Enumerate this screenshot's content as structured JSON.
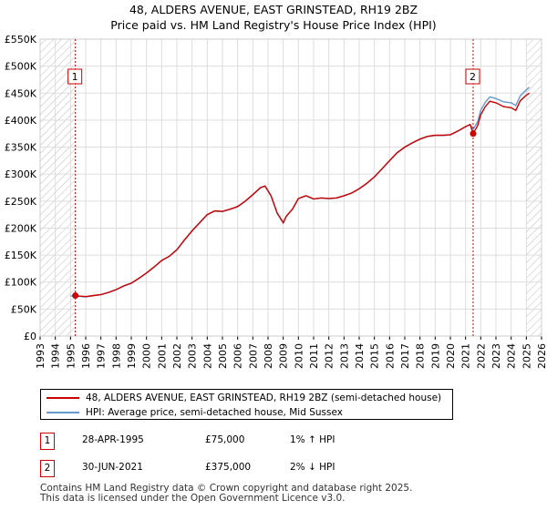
{
  "title_line1": "48, ALDERS AVENUE, EAST GRINSTEAD, RH19 2BZ",
  "title_line2": "Price paid vs. HM Land Registry's House Price Index (HPI)",
  "legend": {
    "property_label": "48, ALDERS AVENUE, EAST GRINSTEAD, RH19 2BZ (semi-detached house)",
    "hpi_label": "HPI: Average price, semi-detached house, Mid Sussex"
  },
  "sales": [
    {
      "num": "1",
      "date": "28-APR-1995",
      "price": "£75,000",
      "hpi_rel": "1% ↑ HPI"
    },
    {
      "num": "2",
      "date": "30-JUN-2021",
      "price": "£375,000",
      "hpi_rel": "2% ↓ HPI"
    }
  ],
  "footer_line1": "Contains HM Land Registry data © Crown copyright and database right 2025.",
  "footer_line2": "This data is licensed under the Open Government Licence v3.0.",
  "colors": {
    "property": "#cc0000",
    "hpi": "#6699cc",
    "grid": "#dddddd",
    "hatch": "#bbbbbb"
  },
  "chart_data": {
    "type": "line",
    "title": "Price paid vs. HM Land Registry's House Price Index (HPI)",
    "xlabel": "",
    "ylabel": "",
    "xlim": [
      1993,
      2026
    ],
    "ylim": [
      0,
      550000
    ],
    "x_ticks": [
      "1993",
      "1994",
      "1995",
      "1996",
      "1997",
      "1998",
      "1999",
      "2000",
      "2001",
      "2002",
      "2003",
      "2004",
      "2005",
      "2006",
      "2007",
      "2008",
      "2009",
      "2010",
      "2011",
      "2012",
      "2013",
      "2014",
      "2015",
      "2016",
      "2017",
      "2018",
      "2019",
      "2020",
      "2021",
      "2022",
      "2023",
      "2024",
      "2025",
      "2026"
    ],
    "y_ticks": [
      {
        "value": 0,
        "label": "£0"
      },
      {
        "value": 50000,
        "label": "£50K"
      },
      {
        "value": 100000,
        "label": "£100K"
      },
      {
        "value": 150000,
        "label": "£150K"
      },
      {
        "value": 200000,
        "label": "£200K"
      },
      {
        "value": 250000,
        "label": "£250K"
      },
      {
        "value": 300000,
        "label": "£300K"
      },
      {
        "value": 350000,
        "label": "£350K"
      },
      {
        "value": 400000,
        "label": "£400K"
      },
      {
        "value": 450000,
        "label": "£450K"
      },
      {
        "value": 500000,
        "label": "£500K"
      },
      {
        "value": 550000,
        "label": "£550K"
      }
    ],
    "hatched_ranges": [
      [
        1993,
        1995.3
      ],
      [
        2025.0,
        2026
      ]
    ],
    "grid": true,
    "series": [
      {
        "name": "48, ALDERS AVENUE, EAST GRINSTEAD, RH19 2BZ (semi-detached house)",
        "x": [
          1995.32,
          1995.6,
          1996.0,
          1996.5,
          1997.0,
          1997.5,
          1998.0,
          1998.5,
          1999.0,
          1999.5,
          2000.0,
          2000.5,
          2001.0,
          2001.5,
          2002.0,
          2002.5,
          2003.0,
          2003.5,
          2004.0,
          2004.5,
          2005.0,
          2005.5,
          2006.0,
          2006.5,
          2007.0,
          2007.5,
          2007.8,
          2008.2,
          2008.6,
          2009.0,
          2009.2,
          2009.6,
          2010.0,
          2010.5,
          2011.0,
          2011.5,
          2012.0,
          2012.5,
          2013.0,
          2013.5,
          2014.0,
          2014.5,
          2015.0,
          2015.5,
          2016.0,
          2016.5,
          2017.0,
          2017.5,
          2018.0,
          2018.5,
          2019.0,
          2019.5,
          2020.0,
          2020.5,
          2021.0,
          2021.3,
          2021.5,
          2021.8,
          2022.0,
          2022.3,
          2022.6,
          2023.0,
          2023.5,
          2024.0,
          2024.3,
          2024.6,
          2025.0,
          2025.2
        ],
        "values": [
          75000,
          74000,
          73000,
          75000,
          77000,
          81000,
          86000,
          93000,
          98000,
          107000,
          117000,
          128000,
          140000,
          148000,
          160000,
          178000,
          195000,
          210000,
          225000,
          232000,
          231000,
          235000,
          240000,
          250000,
          262000,
          275000,
          278000,
          260000,
          228000,
          210000,
          222000,
          235000,
          255000,
          260000,
          254000,
          256000,
          255000,
          256000,
          260000,
          265000,
          273000,
          283000,
          295000,
          310000,
          325000,
          340000,
          350000,
          358000,
          365000,
          370000,
          372000,
          372000,
          373000,
          380000,
          388000,
          392000,
          375000,
          390000,
          410000,
          425000,
          435000,
          432000,
          425000,
          423000,
          418000,
          436000,
          446000,
          450000
        ]
      },
      {
        "name": "HPI: Average price, semi-detached house, Mid Sussex",
        "x": [
          1995.0,
          1995.32,
          1995.6,
          1996.0,
          1996.5,
          1997.0,
          1997.5,
          1998.0,
          1998.5,
          1999.0,
          1999.5,
          2000.0,
          2000.5,
          2001.0,
          2001.5,
          2002.0,
          2002.5,
          2003.0,
          2003.5,
          2004.0,
          2004.5,
          2005.0,
          2005.5,
          2006.0,
          2006.5,
          2007.0,
          2007.5,
          2007.8,
          2008.2,
          2008.6,
          2009.0,
          2009.2,
          2009.6,
          2010.0,
          2010.5,
          2011.0,
          2011.5,
          2012.0,
          2012.5,
          2013.0,
          2013.5,
          2014.0,
          2014.5,
          2015.0,
          2015.5,
          2016.0,
          2016.5,
          2017.0,
          2017.5,
          2018.0,
          2018.5,
          2019.0,
          2019.5,
          2020.0,
          2020.5,
          2021.0,
          2021.3,
          2021.5,
          2021.8,
          2022.0,
          2022.3,
          2022.6,
          2023.0,
          2023.5,
          2024.0,
          2024.3,
          2024.6,
          2025.0,
          2025.2
        ],
        "values": [
          74000,
          74500,
          73500,
          72500,
          74500,
          76500,
          80500,
          85500,
          92500,
          97500,
          106500,
          116500,
          127500,
          139500,
          147500,
          159500,
          177500,
          194500,
          209500,
          224500,
          231500,
          230500,
          234500,
          239500,
          249500,
          261500,
          274500,
          277500,
          259500,
          227500,
          209500,
          221500,
          234500,
          254500,
          259500,
          253500,
          255500,
          254500,
          255500,
          259500,
          264500,
          272500,
          282500,
          294500,
          309500,
          324500,
          339500,
          349500,
          357500,
          364500,
          369500,
          371500,
          371500,
          372500,
          379500,
          387500,
          391500,
          383000,
          397000,
          418000,
          433000,
          443000,
          440000,
          434000,
          432000,
          427000,
          445000,
          456000,
          461000
        ]
      }
    ],
    "markers": [
      {
        "label": "1",
        "x": 1995.32,
        "value": 75000
      },
      {
        "label": "2",
        "x": 2021.5,
        "value": 375000
      }
    ]
  }
}
